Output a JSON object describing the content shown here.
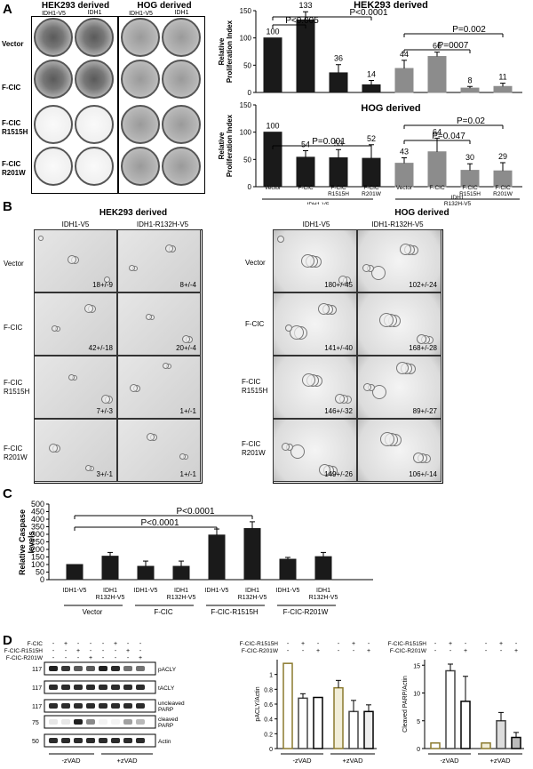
{
  "panelA": {
    "label": "A",
    "hek_header": "HEK293 derived",
    "hog_header": "HOG derived",
    "col_idh1": "IDH1-V5",
    "col_r132h": "IDH1\nR132H-V5",
    "rows": [
      "Vector",
      "F-CIC",
      "F-CIC\nR1515H",
      "F-CIC\nR201W"
    ],
    "chart_top_title": "HEK293 derived",
    "chart_bottom_title": "HOG derived",
    "ylabel": "Relative\nProliferation Index",
    "xcats": [
      "Vector",
      "F-CIC",
      "F-CIC\nR1515H",
      "F-CIC\nR201W",
      "Vector",
      "F-CIC",
      "F-CIC\nR1515H",
      "F-CIC\nR201W"
    ],
    "group_idh1": "IDH1-V5",
    "group_r132h": "IDH1\nR132H-V5",
    "pvals_top": [
      "P<0.005",
      "P<0.0001",
      "P=0.002",
      "P=0007"
    ],
    "pvals_bottom": [
      "P=0.001",
      "P=0.02",
      "P=0.047"
    ]
  },
  "panelB": {
    "label": "B",
    "hek_header": "HEK293 derived",
    "hog_header": "HOG derived",
    "col_idh1": "IDH1-V5",
    "col_r132h": "IDH1-R132H-V5",
    "rows": [
      "Vector",
      "F-CIC",
      "F-CIC\nR1515H",
      "F-CIC\nR201W"
    ],
    "hek_counts": [
      [
        "18+/-9",
        "8+/-4"
      ],
      [
        "42+/-18",
        "20+/-4"
      ],
      [
        "7+/-3",
        "1+/-1"
      ],
      [
        "3+/-1",
        "1+/-1"
      ]
    ],
    "hog_counts": [
      [
        "180+/-45",
        "102+/-24"
      ],
      [
        "141+/-40",
        "168+/-28"
      ],
      [
        "146+/-32",
        "89+/-27"
      ],
      [
        "149+/-26",
        "106+/-14"
      ]
    ]
  },
  "panelC": {
    "label": "C",
    "pvals": [
      "P<0.0001",
      "P<0.0001"
    ],
    "xcats": [
      "IDH1-V5",
      "IDH1\nR132H-V5",
      "IDH1-V5",
      "IDH1\nR132H-V5",
      "IDH1-V5",
      "IDH1\nR132H-V5",
      "IDH1-V5",
      "IDH1\nR132H-V5"
    ],
    "groups": [
      "Vector",
      "F-CIC",
      "F-CIC-R1515H",
      "F-CIC-R201W"
    ]
  },
  "panelD": {
    "label": "D",
    "conditions": [
      "F-CIC",
      "F-CIC-R1515H",
      "F-CIC-R201W"
    ],
    "signs": [
      [
        "-",
        "+",
        "-",
        "-",
        "-",
        "+",
        "-",
        "-"
      ],
      [
        "-",
        "-",
        "+",
        "-",
        "-",
        "-",
        "+",
        "-"
      ],
      [
        "-",
        "-",
        "-",
        "+",
        "-",
        "-",
        "-",
        "+"
      ]
    ],
    "markers": [
      "117",
      "117",
      "117",
      "75",
      "50"
    ],
    "blots": [
      "pACLY",
      "tACLY",
      "uncleaved\nPARP",
      "cleaved\nPARP",
      "Actin"
    ],
    "treatments": [
      "-zVAD",
      "+zVAD"
    ],
    "chart2_legend": [
      "F-CIC-R1515H",
      "F-CIC-R201W"
    ],
    "chart2_signs": [
      [
        "-",
        "+",
        "-",
        "-",
        "+",
        "-"
      ],
      [
        "-",
        "-",
        "+",
        "-",
        "-",
        "+"
      ]
    ],
    "chart3_legend": [
      "F-CIC-R1515H",
      "F-CIC-R201W"
    ],
    "chart3_signs": [
      [
        "-",
        "+",
        "-",
        "-",
        "+",
        "-"
      ],
      [
        "-",
        "-",
        "+",
        "-",
        "-",
        "+"
      ]
    ]
  },
  "chart_data": [
    {
      "type": "bar",
      "title": "HEK293 derived",
      "ylabel": "Relative Proliferation Index",
      "categories": [
        "Vector",
        "F-CIC",
        "F-CIC R1515H",
        "F-CIC R201W",
        "Vector",
        "F-CIC",
        "F-CIC R1515H",
        "F-CIC R201W"
      ],
      "values": [
        100,
        133,
        36,
        14,
        44,
        66,
        8,
        11
      ],
      "errors": [
        0,
        15,
        15,
        8,
        15,
        8,
        3,
        6
      ],
      "value_labels": [
        "100",
        "133",
        "36",
        "14",
        "44",
        "66",
        "8",
        "11"
      ],
      "colors": [
        "#1a1a1a",
        "#1a1a1a",
        "#1a1a1a",
        "#1a1a1a",
        "#8c8c8c",
        "#8c8c8c",
        "#8c8c8c",
        "#8c8c8c"
      ],
      "ylim": [
        0,
        150
      ],
      "yticks": [
        0,
        50,
        100,
        150
      ]
    },
    {
      "type": "bar",
      "title": "HOG derived",
      "ylabel": "Relative Proliferation Index",
      "categories": [
        "Vector",
        "F-CIC",
        "F-CIC R1515H",
        "F-CIC R201W",
        "Vector",
        "F-CIC",
        "F-CIC R1515H",
        "F-CIC R201W"
      ],
      "values": [
        100,
        54,
        53,
        52,
        43,
        64,
        30,
        29
      ],
      "errors": [
        0,
        12,
        15,
        25,
        10,
        25,
        12,
        15
      ],
      "value_labels": [
        "100",
        "54",
        "53",
        "52",
        "43",
        "64",
        "30",
        "29"
      ],
      "colors": [
        "#1a1a1a",
        "#1a1a1a",
        "#1a1a1a",
        "#1a1a1a",
        "#8c8c8c",
        "#8c8c8c",
        "#8c8c8c",
        "#8c8c8c"
      ],
      "ylim": [
        0,
        150
      ],
      "yticks": [
        0,
        50,
        100,
        150
      ]
    },
    {
      "type": "bar",
      "ylabel": "Relative Caspase levels",
      "categories": [
        "IDH1-V5",
        "IDH1 R132H-V5",
        "IDH1-V5",
        "IDH1 R132H-V5",
        "IDH1-V5",
        "IDH1 R132H-V5",
        "IDH1-V5",
        "IDH1 R132H-V5"
      ],
      "values": [
        100,
        155,
        88,
        88,
        295,
        338,
        135,
        152
      ],
      "errors": [
        0,
        25,
        35,
        35,
        40,
        45,
        12,
        28
      ],
      "ylim": [
        0,
        500
      ],
      "yticks": [
        0,
        50,
        100,
        150,
        200,
        250,
        300,
        350,
        400,
        450,
        500
      ],
      "color": "#1a1a1a"
    },
    {
      "type": "bar",
      "ylabel": "pACLY/Actin",
      "categories": [
        "-zVAD 1",
        "-zVAD 2",
        "-zVAD 3",
        "+zVAD 1",
        "+zVAD 2",
        "+zVAD 3"
      ],
      "values": [
        1.15,
        0.68,
        0.69,
        0.82,
        0.5,
        0.5
      ],
      "errors": [
        0,
        0.06,
        0,
        0.1,
        0.15,
        0.09
      ],
      "colors": [
        "#8b7a2e",
        "#444444",
        "#000000",
        "#8b7a2e",
        "#444444",
        "#000000"
      ],
      "fills": [
        "#ffffff",
        "#ffffff",
        "#ffffff",
        "#f2eed8",
        "#ffffff",
        "#eeeeee"
      ],
      "ylim": [
        0,
        1.2
      ],
      "yticks": [
        0,
        0.2,
        0.4,
        0.6,
        0.8,
        1
      ]
    },
    {
      "type": "bar",
      "ylabel": "Cleaved PARP/Actin",
      "categories": [
        "-zVAD 1",
        "-zVAD 2",
        "-zVAD 3",
        "+zVAD 1",
        "+zVAD 2",
        "+zVAD 3"
      ],
      "values": [
        1,
        14,
        8.5,
        1,
        5,
        2
      ],
      "errors": [
        0,
        1.2,
        4.5,
        0,
        1.5,
        0.9
      ],
      "colors": [
        "#8b7a2e",
        "#444444",
        "#000000",
        "#8b7a2e",
        "#444444",
        "#000000"
      ],
      "fills": [
        "#ffffff",
        "#ffffff",
        "#ffffff",
        "#f2eed8",
        "#dddddd",
        "#bbbbbb"
      ],
      "ylim": [
        0,
        16
      ],
      "yticks": [
        0,
        5,
        10,
        15
      ]
    }
  ]
}
